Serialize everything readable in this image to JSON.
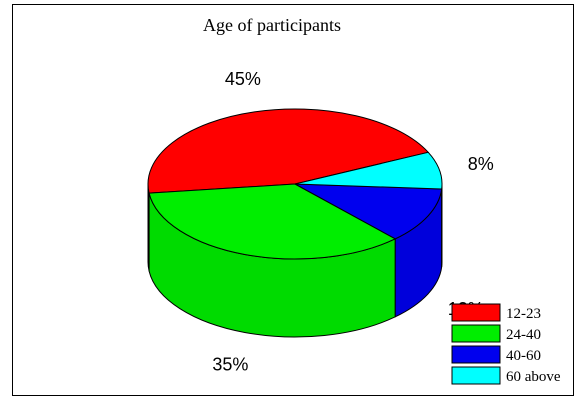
{
  "chart_data": {
    "type": "pie",
    "title": "Age of participants",
    "categories": [
      "12-23",
      "24-40",
      "40-60",
      "60 above"
    ],
    "values": [
      45,
      35,
      12,
      8
    ],
    "labels": [
      "45%",
      "35%",
      "12%",
      "8%"
    ],
    "colors": [
      "#ff0000",
      "#00ee00",
      "#0000ee",
      "#00ffff"
    ],
    "legend_position": "bottom-right",
    "style": "3d"
  }
}
